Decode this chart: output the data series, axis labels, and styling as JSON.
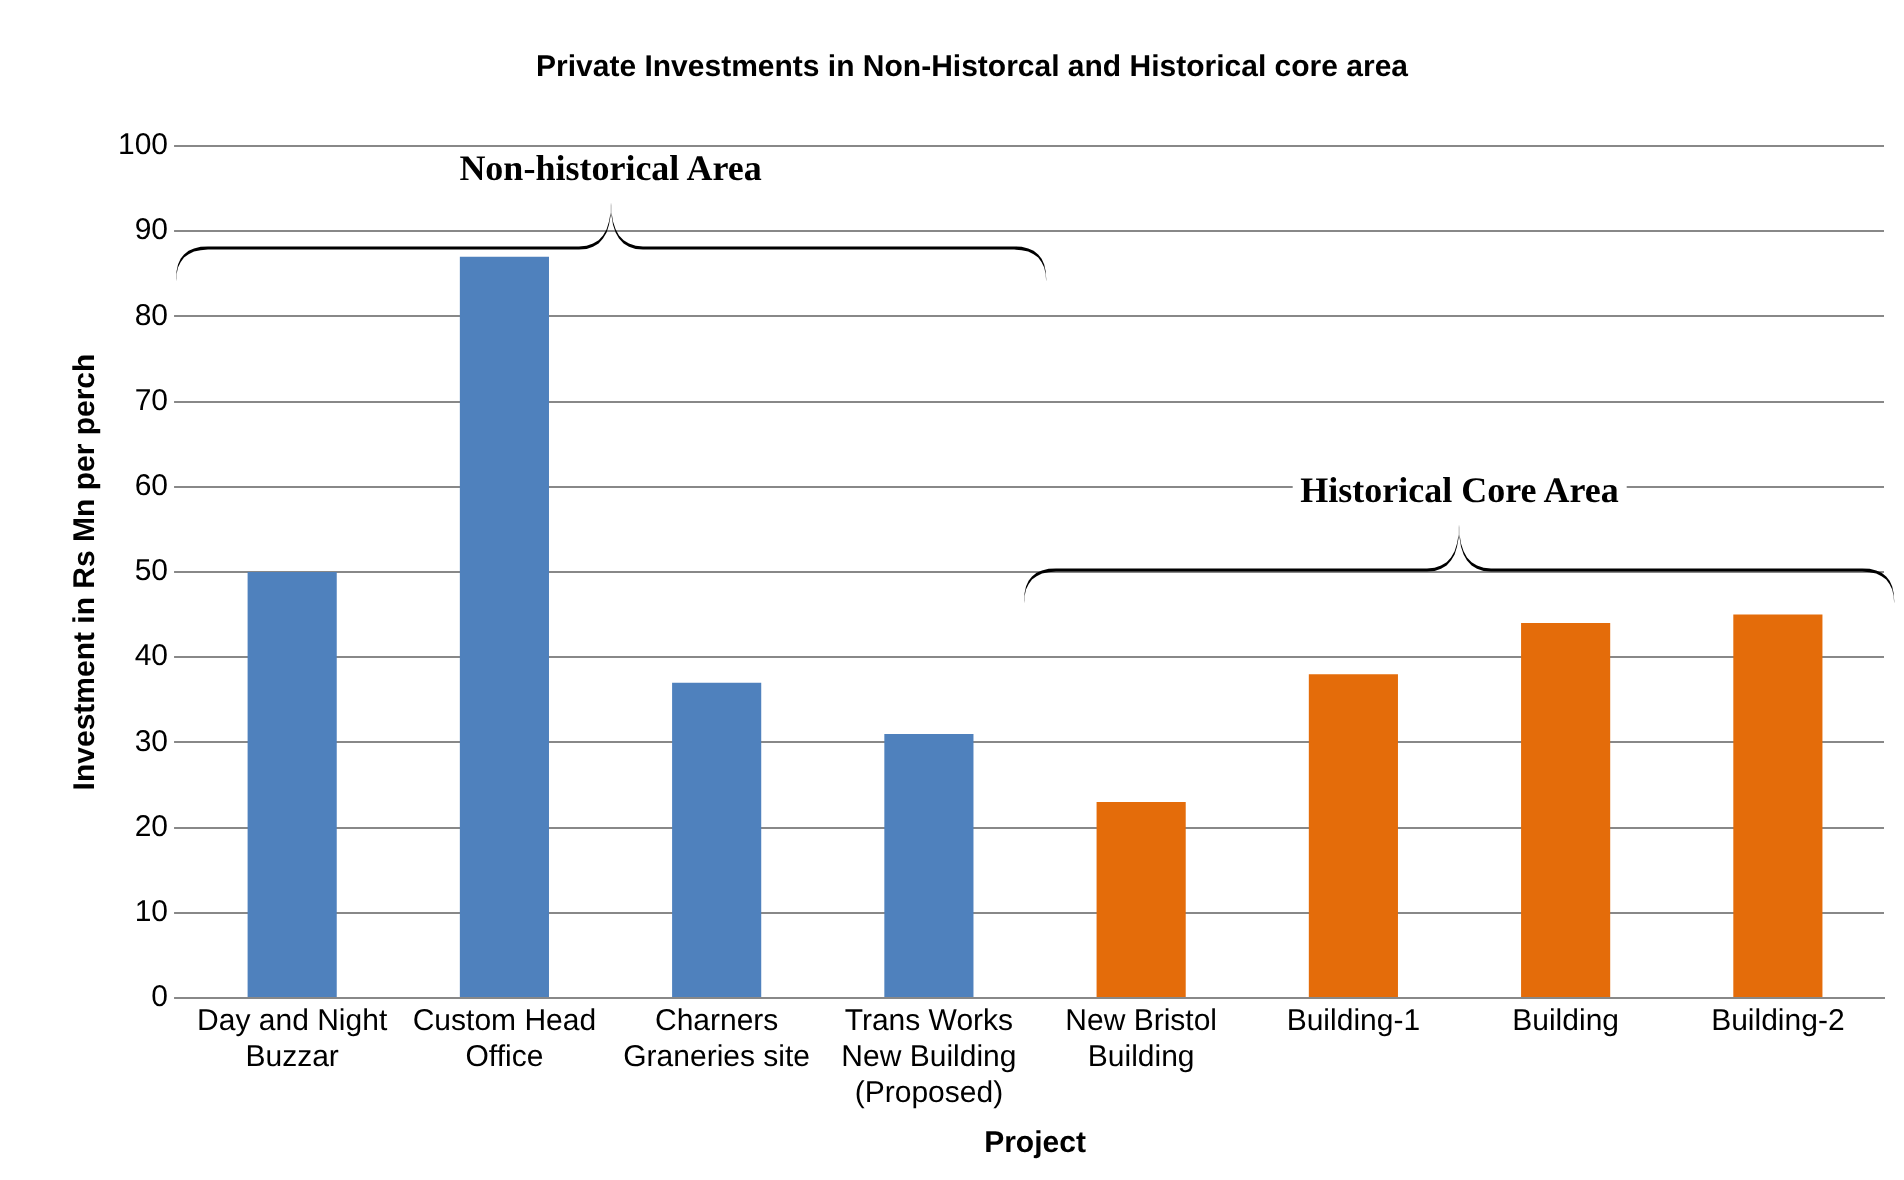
{
  "chart_data": {
    "type": "bar",
    "title": "Private Investments in Non-Historcal and Historical core area",
    "xlabel": "Project",
    "ylabel": "Investment in Rs Mn per perch",
    "categories": [
      "Day and Night Buzzar",
      "Custom Head Office",
      "Charners Graneries site",
      "Trans Works New Building (Proposed)",
      "New Bristol Building",
      "Building-1",
      "Building",
      "Building-2"
    ],
    "values": [
      50,
      87,
      37,
      31,
      23,
      38,
      44,
      45
    ],
    "colors": [
      "#4f81bd",
      "#4f81bd",
      "#4f81bd",
      "#4f81bd",
      "#e46c0a",
      "#e46c0a",
      "#e46c0a",
      "#e46c0a"
    ],
    "ylim": [
      0,
      100
    ],
    "yticks": [
      0,
      10,
      20,
      30,
      40,
      50,
      60,
      70,
      80,
      90,
      100
    ],
    "grid": "y",
    "legend": false,
    "annotations": [
      "Non-historical Area",
      "Historical Core Area"
    ]
  }
}
